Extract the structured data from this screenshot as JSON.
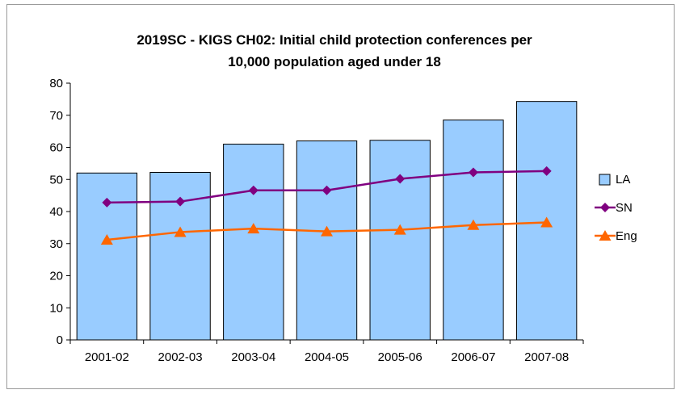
{
  "chart_data": {
    "type": "bar",
    "title_lines": [
      "2019SC - KIGS CH02: Initial child protection conferences per",
      "10,000 population aged under 18"
    ],
    "xlabel": "",
    "ylabel": "",
    "categories": [
      "2001-02",
      "2002-03",
      "2003-04",
      "2004-05",
      "2005-06",
      "2006-07",
      "2007-08"
    ],
    "ylim": [
      0,
      80
    ],
    "yticks": [
      0,
      10,
      20,
      30,
      40,
      50,
      60,
      70,
      80
    ],
    "grid": false,
    "legend_position": "right",
    "series": [
      {
        "name": "LA",
        "kind": "bar",
        "color": "#99ccff",
        "values": [
          52,
          52.2,
          61,
          62,
          62.2,
          68.5,
          74.3
        ]
      },
      {
        "name": "SN",
        "kind": "line",
        "marker": "diamond",
        "color": "#800080",
        "values": [
          42.8,
          43.1,
          46.6,
          46.6,
          50.2,
          52.2,
          52.6
        ]
      },
      {
        "name": "Eng",
        "kind": "line",
        "marker": "triangle",
        "color": "#ff6600",
        "values": [
          31.2,
          33.6,
          34.7,
          33.8,
          34.3,
          35.8,
          36.6
        ]
      }
    ]
  }
}
